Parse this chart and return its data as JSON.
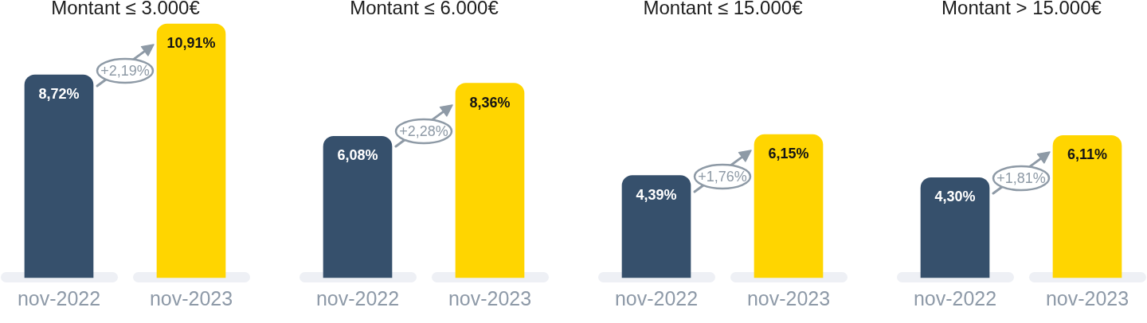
{
  "chart_data": [
    {
      "type": "bar",
      "title": "Montant ≤ 3.000€",
      "categories": [
        "nov-2022",
        "nov-2023"
      ],
      "values": [
        8.72,
        10.91
      ],
      "colors": [
        "#36506c",
        "#ffd500"
      ],
      "value_labels": [
        "8,72%",
        "10,91%"
      ],
      "annotations": [
        "+2,19%"
      ],
      "tick_labels": "x"
    },
    {
      "type": "bar",
      "title": "Montant ≤ 6.000€",
      "categories": [
        "nov-2022",
        "nov-2023"
      ],
      "values": [
        6.08,
        8.36
      ],
      "colors": [
        "#36506c",
        "#ffd500"
      ],
      "value_labels": [
        "6,08%",
        "8,36%"
      ],
      "annotations": [
        "+2,28%"
      ],
      "tick_labels": "x"
    },
    {
      "type": "bar",
      "title": "Montant ≤ 15.000€",
      "categories": [
        "nov-2022",
        "nov-2023"
      ],
      "values": [
        4.39,
        6.15
      ],
      "colors": [
        "#36506c",
        "#ffd500"
      ],
      "value_labels": [
        "4,39%",
        "6,15%"
      ],
      "annotations": [
        "+1,76%"
      ],
      "tick_labels": "x"
    },
    {
      "type": "bar",
      "title": "Montant > 15.000€",
      "categories": [
        "nov-2022",
        "nov-2023"
      ],
      "values": [
        4.3,
        6.11
      ],
      "colors": [
        "#36506c",
        "#ffd500"
      ],
      "value_labels": [
        "4,30%",
        "6,11%"
      ],
      "annotations": [
        "+1,81%"
      ],
      "tick_labels": "x"
    }
  ]
}
